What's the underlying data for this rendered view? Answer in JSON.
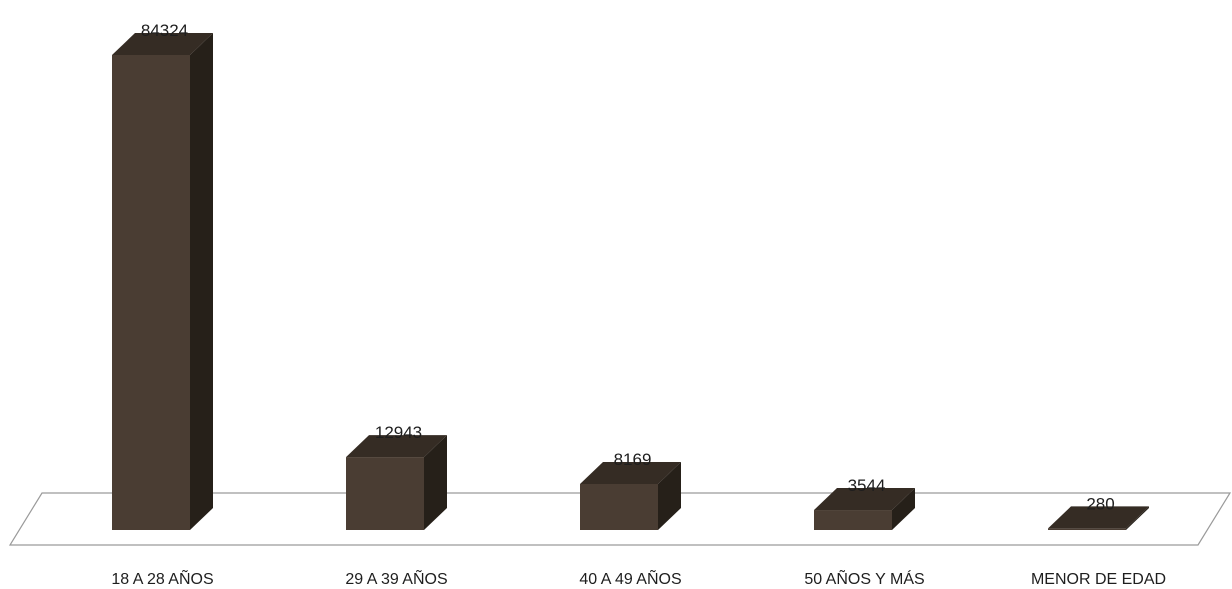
{
  "chart_data": {
    "type": "bar",
    "categories": [
      "18 A 28 AÑOS",
      "29 A 39 AÑOS",
      "40 A 49 AÑOS",
      "50 AÑOS Y MÁS",
      "MENOR DE EDAD"
    ],
    "values": [
      84324,
      12943,
      8169,
      3544,
      280
    ],
    "data_labels": [
      "84324",
      "12943",
      "8169",
      "3544",
      "280"
    ],
    "title": "",
    "xlabel": "",
    "ylabel": "",
    "ylim": [
      0,
      84324
    ],
    "grid": false,
    "legend": "none",
    "style": "3d-column",
    "colors": {
      "bar_front": "#4a3d33",
      "bar_side": "#262019",
      "bar_top": "#352c24"
    }
  }
}
